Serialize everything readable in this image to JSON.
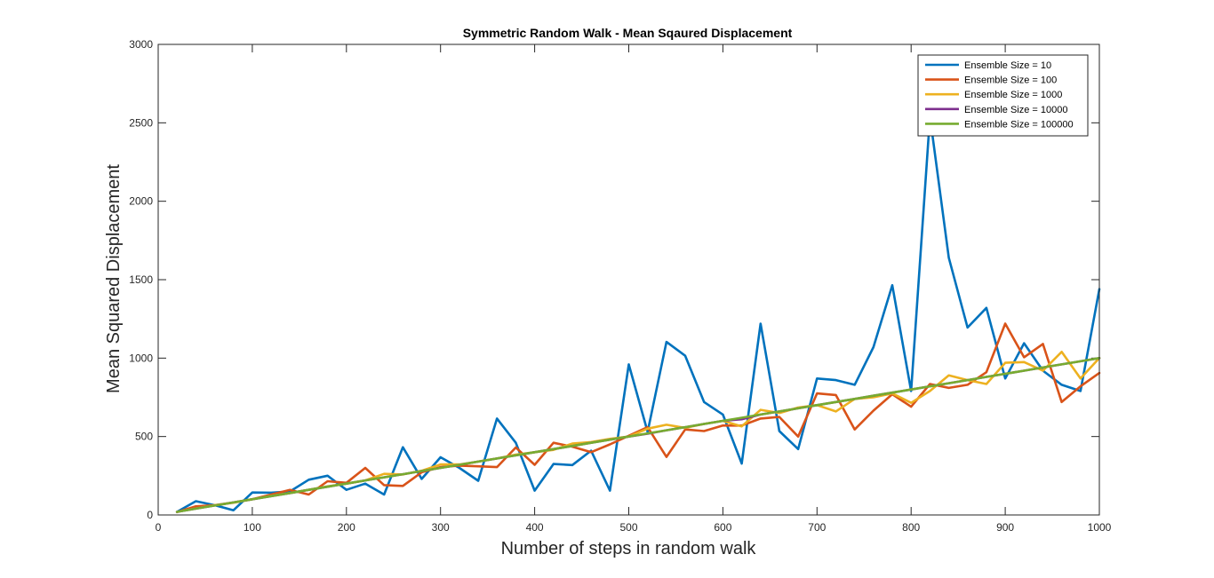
{
  "chart_data": {
    "type": "line",
    "title": "Symmetric Random Walk - Mean Sqaured Displacement",
    "xlabel": "Number of steps in random walk",
    "ylabel": "Mean Squared Displacement",
    "xlim": [
      0,
      1000
    ],
    "ylim": [
      0,
      3000
    ],
    "xticks": [
      0,
      100,
      200,
      300,
      400,
      500,
      600,
      700,
      800,
      900,
      1000
    ],
    "yticks": [
      0,
      500,
      1000,
      1500,
      2000,
      2500,
      3000
    ],
    "grid": false,
    "legend_position": "top-right",
    "x": [
      20,
      40,
      60,
      80,
      100,
      120,
      140,
      160,
      180,
      200,
      220,
      240,
      260,
      280,
      300,
      320,
      340,
      360,
      380,
      400,
      420,
      440,
      460,
      480,
      500,
      520,
      540,
      560,
      580,
      600,
      620,
      640,
      660,
      680,
      700,
      720,
      740,
      760,
      780,
      800,
      820,
      840,
      860,
      880,
      900,
      920,
      940,
      960,
      980,
      1000
    ],
    "series": [
      {
        "name": "Ensemble Size = 10",
        "color": "#0072BD",
        "values": [
          20,
          88,
          62,
          30,
          143,
          142,
          150,
          225,
          250,
          160,
          200,
          130,
          432,
          230,
          368,
          300,
          218,
          615,
          460,
          155,
          325,
          318,
          410,
          155,
          960,
          530,
          1103,
          1015,
          720,
          640,
          328,
          1220,
          535,
          420,
          870,
          860,
          830,
          1070,
          1465,
          790,
          2540,
          1640,
          1195,
          1320,
          870,
          1095,
          920,
          830,
          790,
          1440
        ]
      },
      {
        "name": "Ensemble Size = 100",
        "color": "#D95319",
        "values": [
          18,
          55,
          62,
          80,
          100,
          130,
          160,
          130,
          215,
          205,
          300,
          190,
          185,
          272,
          305,
          315,
          310,
          305,
          430,
          320,
          460,
          435,
          400,
          450,
          505,
          560,
          370,
          545,
          535,
          570,
          570,
          615,
          625,
          500,
          775,
          765,
          545,
          665,
          770,
          690,
          835,
          810,
          830,
          910,
          1220,
          1005,
          1090,
          720,
          820,
          905
        ]
      },
      {
        "name": "Ensemble Size = 1000",
        "color": "#EDB120",
        "values": [
          20,
          42,
          62,
          78,
          100,
          122,
          140,
          160,
          182,
          200,
          220,
          262,
          258,
          282,
          322,
          322,
          340,
          360,
          385,
          400,
          415,
          455,
          465,
          485,
          500,
          550,
          575,
          555,
          580,
          600,
          565,
          670,
          650,
          685,
          700,
          660,
          740,
          750,
          775,
          715,
          790,
          890,
          860,
          835,
          970,
          975,
          920,
          1040,
          870,
          1000
        ]
      },
      {
        "name": "Ensemble Size = 10000",
        "color": "#7E2F8E",
        "values": [
          20,
          40,
          60,
          80,
          100,
          120,
          140,
          160,
          180,
          200,
          220,
          240,
          260,
          280,
          300,
          320,
          340,
          360,
          380,
          400,
          420,
          440,
          460,
          480,
          500,
          518,
          540,
          560,
          580,
          600,
          610,
          640,
          660,
          680,
          700,
          720,
          740,
          760,
          780,
          800,
          820,
          840,
          860,
          880,
          900,
          920,
          940,
          960,
          980,
          1000
        ]
      },
      {
        "name": "Ensemble Size = 100000",
        "color": "#77AC30",
        "values": [
          20,
          40,
          60,
          80,
          100,
          120,
          140,
          160,
          180,
          200,
          220,
          240,
          260,
          280,
          300,
          320,
          340,
          360,
          380,
          400,
          420,
          440,
          460,
          480,
          500,
          520,
          540,
          560,
          580,
          600,
          620,
          640,
          660,
          680,
          700,
          720,
          740,
          760,
          780,
          800,
          820,
          840,
          860,
          880,
          900,
          920,
          940,
          960,
          980,
          1000
        ]
      }
    ]
  }
}
